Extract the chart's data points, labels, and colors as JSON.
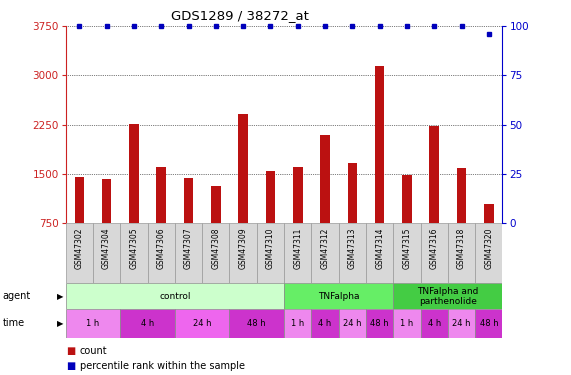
{
  "title": "GDS1289 / 38272_at",
  "samples": [
    "GSM47302",
    "GSM47304",
    "GSM47305",
    "GSM47306",
    "GSM47307",
    "GSM47308",
    "GSM47309",
    "GSM47310",
    "GSM47311",
    "GSM47312",
    "GSM47313",
    "GSM47314",
    "GSM47315",
    "GSM47316",
    "GSM47318",
    "GSM47320"
  ],
  "bar_values": [
    1460,
    1420,
    2260,
    1600,
    1440,
    1310,
    2420,
    1540,
    1600,
    2090,
    1660,
    3140,
    1490,
    2230,
    1590,
    1040
  ],
  "percentile_values": [
    100,
    100,
    100,
    100,
    100,
    100,
    100,
    100,
    100,
    100,
    100,
    100,
    100,
    100,
    100,
    96
  ],
  "bar_color": "#bb1111",
  "dot_color": "#0000bb",
  "ylim_left": [
    750,
    3750
  ],
  "ylim_right": [
    0,
    100
  ],
  "yticks_left": [
    750,
    1500,
    2250,
    3000,
    3750
  ],
  "yticks_right": [
    0,
    25,
    50,
    75,
    100
  ],
  "agent_groups": [
    {
      "label": "control",
      "start": 0,
      "end": 8,
      "color": "#ccffcc"
    },
    {
      "label": "TNFalpha",
      "start": 8,
      "end": 12,
      "color": "#66ee66"
    },
    {
      "label": "TNFalpha and\nparthenolide",
      "start": 12,
      "end": 16,
      "color": "#44cc44"
    }
  ],
  "time_groups": [
    {
      "label": "1 h",
      "start": 0,
      "end": 2,
      "color": "#ee88ee"
    },
    {
      "label": "4 h",
      "start": 2,
      "end": 4,
      "color": "#cc33cc"
    },
    {
      "label": "24 h",
      "start": 4,
      "end": 6,
      "color": "#ee66ee"
    },
    {
      "label": "48 h",
      "start": 6,
      "end": 8,
      "color": "#cc33cc"
    },
    {
      "label": "1 h",
      "start": 8,
      "end": 9,
      "color": "#ee88ee"
    },
    {
      "label": "4 h",
      "start": 9,
      "end": 10,
      "color": "#cc33cc"
    },
    {
      "label": "24 h",
      "start": 10,
      "end": 11,
      "color": "#ee88ee"
    },
    {
      "label": "48 h",
      "start": 11,
      "end": 12,
      "color": "#cc33cc"
    },
    {
      "label": "1 h",
      "start": 12,
      "end": 13,
      "color": "#ee88ee"
    },
    {
      "label": "4 h",
      "start": 13,
      "end": 14,
      "color": "#cc33cc"
    },
    {
      "label": "24 h",
      "start": 14,
      "end": 15,
      "color": "#ee88ee"
    },
    {
      "label": "48 h",
      "start": 15,
      "end": 16,
      "color": "#cc33cc"
    }
  ],
  "legend_count_color": "#bb1111",
  "legend_dot_color": "#0000bb",
  "bg_color": "#ffffff",
  "grid_color": "#000000",
  "left_axis_color": "#cc2222",
  "right_axis_color": "#0000cc",
  "bar_width": 0.35,
  "label_fontsize": 5.5,
  "tick_fontsize": 7.5
}
